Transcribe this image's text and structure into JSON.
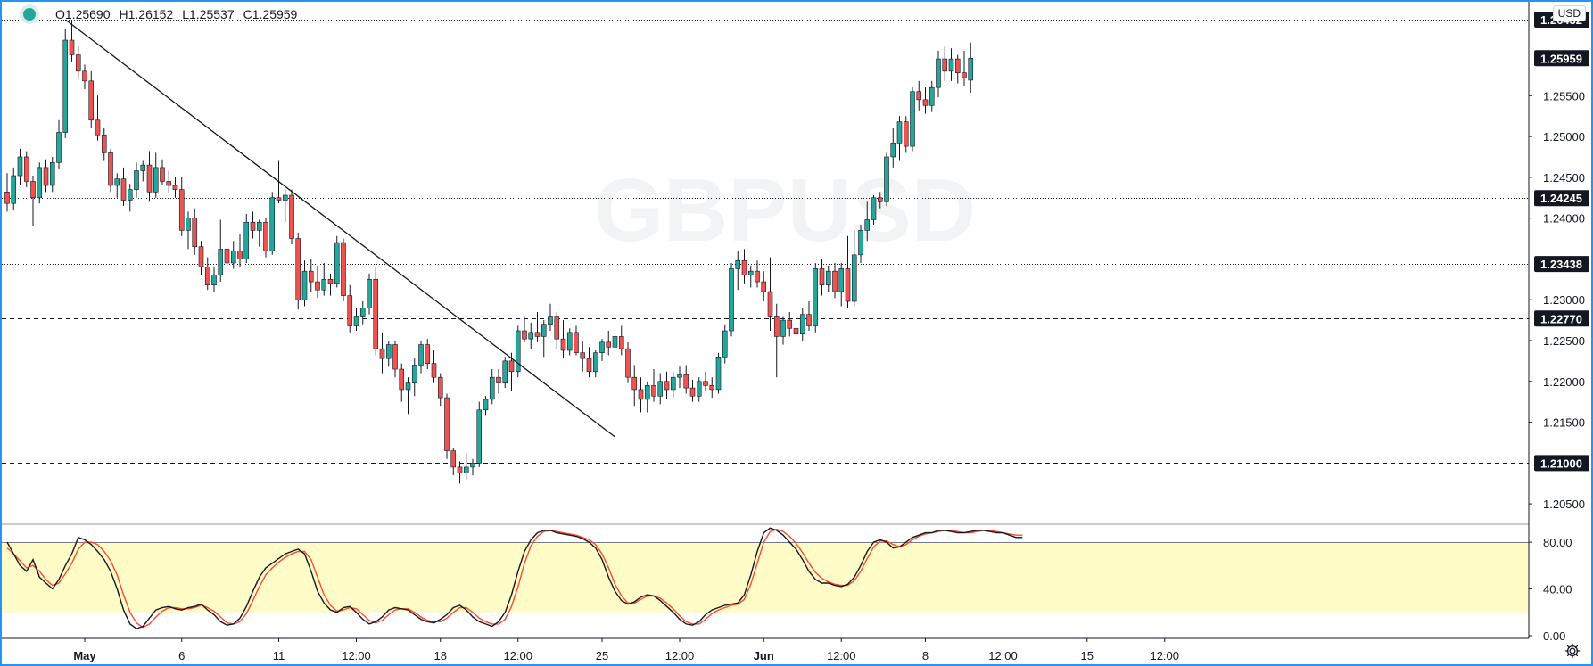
{
  "legend": {
    "open": "O1.25690",
    "high": "H1.26152",
    "low": "L1.25537",
    "close": "C1.25959"
  },
  "currency": "USD",
  "colors": {
    "up": "#26a69a",
    "down": "#ef5350",
    "accent": "#2196f3",
    "band_fill": "#fffcc8",
    "stoch_k": "#131722",
    "stoch_d": "#ff4a2e",
    "price_label_bg": "#131722"
  },
  "price_axis": {
    "ticks": [
      "1.20500",
      "1.21000",
      "1.21500",
      "1.22000",
      "1.22500",
      "1.23000",
      "1.23438",
      "1.24000",
      "1.24245",
      "1.24500",
      "1.25000",
      "1.25500",
      "1.25959",
      "1.26432"
    ],
    "plain_ticks": [
      "1.20500",
      "1.21500",
      "1.22000",
      "1.22500",
      "1.23000",
      "1.24000",
      "1.24500",
      "1.25000",
      "1.25500"
    ],
    "badges": [
      {
        "label": "1.26432",
        "value": 1.26432,
        "style": "dotted"
      },
      {
        "label": "1.25959",
        "value": 1.25959,
        "style": "none"
      },
      {
        "label": "1.24245",
        "value": 1.24245,
        "style": "dotted"
      },
      {
        "label": "1.23438",
        "value": 1.23438,
        "style": "dotted"
      },
      {
        "label": "1.22770",
        "value": 1.2277,
        "style": "dashed"
      },
      {
        "label": "1.21000",
        "value": 1.21,
        "style": "dashed"
      }
    ]
  },
  "oscillator_axis": {
    "ticks": [
      {
        "label": "80.00",
        "value": 80
      },
      {
        "label": "40.00",
        "value": 40
      },
      {
        "label": "0.00",
        "value": 0
      }
    ],
    "band": [
      20,
      80
    ]
  },
  "time_axis": [
    {
      "label": "May",
      "bar": 12
    },
    {
      "label": "6",
      "bar": 27
    },
    {
      "label": "11",
      "bar": 42
    },
    {
      "label": "12:00",
      "bar": 54
    },
    {
      "label": "18",
      "bar": 67
    },
    {
      "label": "12:00",
      "bar": 79
    },
    {
      "label": "25",
      "bar": 92
    },
    {
      "label": "12:00",
      "bar": 104
    },
    {
      "label": "Jun",
      "bar": 117
    },
    {
      "label": "12:00",
      "bar": 129
    },
    {
      "label": "8",
      "bar": 142
    },
    {
      "label": "12:00",
      "bar": 154
    },
    {
      "label": "15",
      "bar": 167
    },
    {
      "label": "12:00",
      "bar": 179
    }
  ],
  "chart_data": {
    "type": "candlestick",
    "instrument": "GBPUSD",
    "ylim": [
      1.2025,
      1.2665
    ],
    "candles": [
      [
        1.2432,
        1.2455,
        1.2408,
        1.2418
      ],
      [
        1.2418,
        1.2462,
        1.241,
        1.2452
      ],
      [
        1.2452,
        1.2485,
        1.244,
        1.2475
      ],
      [
        1.2475,
        1.2482,
        1.2438,
        1.2445
      ],
      [
        1.2445,
        1.2452,
        1.239,
        1.2425
      ],
      [
        1.2425,
        1.2468,
        1.2418,
        1.2462
      ],
      [
        1.2462,
        1.2472,
        1.2432,
        1.244
      ],
      [
        1.244,
        1.2475,
        1.2432,
        1.2468
      ],
      [
        1.2468,
        1.252,
        1.246,
        1.2505
      ],
      [
        1.2505,
        1.2632,
        1.2498,
        1.2618
      ],
      [
        1.2618,
        1.2643,
        1.2592,
        1.26
      ],
      [
        1.26,
        1.261,
        1.257,
        1.258
      ],
      [
        1.258,
        1.2588,
        1.2558,
        1.2568
      ],
      [
        1.2568,
        1.258,
        1.251,
        1.252
      ],
      [
        1.252,
        1.255,
        1.2495,
        1.2502
      ],
      [
        1.2502,
        1.251,
        1.247,
        1.248
      ],
      [
        1.248,
        1.2485,
        1.2432,
        1.244
      ],
      [
        1.244,
        1.2455,
        1.2425,
        1.2448
      ],
      [
        1.2448,
        1.2462,
        1.2415,
        1.2422
      ],
      [
        1.2422,
        1.2442,
        1.2408,
        1.2435
      ],
      [
        1.2435,
        1.2468,
        1.2425,
        1.2458
      ],
      [
        1.2458,
        1.247,
        1.2445,
        1.2465
      ],
      [
        1.2465,
        1.2482,
        1.242,
        1.2432
      ],
      [
        1.2432,
        1.248,
        1.2425,
        1.2462
      ],
      [
        1.2462,
        1.2472,
        1.244,
        1.2445
      ],
      [
        1.2445,
        1.2458,
        1.243,
        1.244
      ],
      [
        1.244,
        1.245,
        1.2425,
        1.2435
      ],
      [
        1.2435,
        1.245,
        1.2378,
        1.2385
      ],
      [
        1.2385,
        1.2408,
        1.2362,
        1.24
      ],
      [
        1.24,
        1.2412,
        1.2355,
        1.2365
      ],
      [
        1.2365,
        1.2372,
        1.233,
        1.234
      ],
      [
        1.234,
        1.2352,
        1.2312,
        1.2318
      ],
      [
        1.2318,
        1.234,
        1.231,
        1.233
      ],
      [
        1.233,
        1.2398,
        1.2322,
        1.2362
      ],
      [
        1.2362,
        1.2375,
        1.227,
        1.2345
      ],
      [
        1.2345,
        1.2372,
        1.2338,
        1.236
      ],
      [
        1.236,
        1.238,
        1.234,
        1.235
      ],
      [
        1.235,
        1.2405,
        1.2345,
        1.2395
      ],
      [
        1.2395,
        1.2408,
        1.2375,
        1.2385
      ],
      [
        1.2385,
        1.2398,
        1.2365,
        1.2395
      ],
      [
        1.2395,
        1.24,
        1.2352,
        1.236
      ],
      [
        1.236,
        1.2432,
        1.2355,
        1.2425
      ],
      [
        1.2425,
        1.247,
        1.2418,
        1.2422
      ],
      [
        1.2422,
        1.2435,
        1.2395,
        1.2428
      ],
      [
        1.2428,
        1.2435,
        1.2368,
        1.2375
      ],
      [
        1.2375,
        1.2382,
        1.2288,
        1.23
      ],
      [
        1.23,
        1.2348,
        1.2292,
        1.2335
      ],
      [
        1.2335,
        1.235,
        1.231,
        1.2322
      ],
      [
        1.2322,
        1.2342,
        1.2302,
        1.2312
      ],
      [
        1.2312,
        1.2345,
        1.2305,
        1.2325
      ],
      [
        1.2325,
        1.2332,
        1.2305,
        1.232
      ],
      [
        1.232,
        1.2378,
        1.2315,
        1.237
      ],
      [
        1.237,
        1.2375,
        1.2298,
        1.2305
      ],
      [
        1.2305,
        1.2318,
        1.226,
        1.2268
      ],
      [
        1.2268,
        1.229,
        1.2262,
        1.228
      ],
      [
        1.228,
        1.2298,
        1.227,
        1.229
      ],
      [
        1.229,
        1.2332,
        1.2282,
        1.2325
      ],
      [
        1.2325,
        1.234,
        1.2232,
        1.224
      ],
      [
        1.224,
        1.226,
        1.221,
        1.2228
      ],
      [
        1.2228,
        1.225,
        1.2218,
        1.2245
      ],
      [
        1.2245,
        1.225,
        1.2205,
        1.2215
      ],
      [
        1.2215,
        1.2222,
        1.2175,
        1.219
      ],
      [
        1.219,
        1.2205,
        1.216,
        1.2198
      ],
      [
        1.2198,
        1.2228,
        1.2182,
        1.222
      ],
      [
        1.222,
        1.225,
        1.221,
        1.2245
      ],
      [
        1.2245,
        1.2252,
        1.2215,
        1.2222
      ],
      [
        1.2222,
        1.2238,
        1.2198,
        1.2205
      ],
      [
        1.2205,
        1.221,
        1.217,
        1.218
      ],
      [
        1.218,
        1.2185,
        1.2105,
        1.2115
      ],
      [
        1.2115,
        1.2118,
        1.2085,
        1.2095
      ],
      [
        1.2095,
        1.2102,
        1.2075,
        1.2088
      ],
      [
        1.2088,
        1.2112,
        1.208,
        1.2095
      ],
      [
        1.2095,
        1.2105,
        1.2085,
        1.21
      ],
      [
        1.21,
        1.2175,
        1.2095,
        1.2165
      ],
      [
        1.2165,
        1.2182,
        1.2158,
        1.2178
      ],
      [
        1.2178,
        1.2215,
        1.2172,
        1.2205
      ],
      [
        1.2205,
        1.2215,
        1.2185,
        1.2198
      ],
      [
        1.2198,
        1.223,
        1.2192,
        1.2225
      ],
      [
        1.2225,
        1.2235,
        1.2188,
        1.2212
      ],
      [
        1.2212,
        1.2268,
        1.2205,
        1.2262
      ],
      [
        1.2262,
        1.228,
        1.2248,
        1.2252
      ],
      [
        1.2252,
        1.2272,
        1.224,
        1.226
      ],
      [
        1.226,
        1.2285,
        1.2248,
        1.2255
      ],
      [
        1.2255,
        1.2275,
        1.223,
        1.227
      ],
      [
        1.227,
        1.2295,
        1.2262,
        1.228
      ],
      [
        1.228,
        1.2285,
        1.224,
        1.2252
      ],
      [
        1.2252,
        1.2275,
        1.2228,
        1.2238
      ],
      [
        1.2238,
        1.2265,
        1.2232,
        1.226
      ],
      [
        1.226,
        1.2268,
        1.2232,
        1.2235
      ],
      [
        1.2235,
        1.225,
        1.2212,
        1.2228
      ],
      [
        1.2228,
        1.2242,
        1.2205,
        1.2212
      ],
      [
        1.2212,
        1.2238,
        1.2205,
        1.2235
      ],
      [
        1.2235,
        1.2252,
        1.2225,
        1.2248
      ],
      [
        1.2248,
        1.2262,
        1.2232,
        1.2242
      ],
      [
        1.2242,
        1.2262,
        1.2228,
        1.2255
      ],
      [
        1.2255,
        1.2268,
        1.2232,
        1.224
      ],
      [
        1.224,
        1.2248,
        1.2198,
        1.2205
      ],
      [
        1.2205,
        1.222,
        1.217,
        1.219
      ],
      [
        1.219,
        1.2205,
        1.2162,
        1.2178
      ],
      [
        1.2178,
        1.22,
        1.2162,
        1.2195
      ],
      [
        1.2195,
        1.2215,
        1.2175,
        1.2182
      ],
      [
        1.2182,
        1.221,
        1.2172,
        1.22
      ],
      [
        1.22,
        1.2212,
        1.2178,
        1.219
      ],
      [
        1.219,
        1.2212,
        1.218,
        1.2205
      ],
      [
        1.2205,
        1.2218,
        1.2192,
        1.2208
      ],
      [
        1.2208,
        1.222,
        1.2185,
        1.2192
      ],
      [
        1.2192,
        1.2202,
        1.2175,
        1.2182
      ],
      [
        1.2182,
        1.2205,
        1.2175,
        1.22
      ],
      [
        1.22,
        1.2212,
        1.2188,
        1.2195
      ],
      [
        1.2195,
        1.2205,
        1.218,
        1.219
      ],
      [
        1.219,
        1.2235,
        1.2185,
        1.223
      ],
      [
        1.223,
        1.227,
        1.2222,
        1.2262
      ],
      [
        1.2262,
        1.2345,
        1.2255,
        1.2338
      ],
      [
        1.2338,
        1.236,
        1.2312,
        1.2348
      ],
      [
        1.2348,
        1.2362,
        1.232,
        1.233
      ],
      [
        1.233,
        1.2342,
        1.2315,
        1.2335
      ],
      [
        1.2335,
        1.2348,
        1.2315,
        1.2322
      ],
      [
        1.2322,
        1.2335,
        1.2298,
        1.231
      ],
      [
        1.231,
        1.2352,
        1.2262,
        1.228
      ],
      [
        1.228,
        1.2295,
        1.2205,
        1.2255
      ],
      [
        1.2255,
        1.228,
        1.2245,
        1.2275
      ],
      [
        1.2275,
        1.2285,
        1.2255,
        1.2265
      ],
      [
        1.2265,
        1.2285,
        1.2245,
        1.2258
      ],
      [
        1.2258,
        1.229,
        1.225,
        1.2282
      ],
      [
        1.2282,
        1.2298,
        1.2262,
        1.2268
      ],
      [
        1.2268,
        1.2345,
        1.226,
        1.2338
      ],
      [
        1.2338,
        1.235,
        1.2305,
        1.2318
      ],
      [
        1.2318,
        1.2342,
        1.231,
        1.2335
      ],
      [
        1.2335,
        1.2345,
        1.2302,
        1.231
      ],
      [
        1.231,
        1.2345,
        1.2292,
        1.2338
      ],
      [
        1.2338,
        1.2378,
        1.229,
        1.2298
      ],
      [
        1.2298,
        1.2385,
        1.2292,
        1.2355
      ],
      [
        1.2355,
        1.2392,
        1.2345,
        1.2385
      ],
      [
        1.2385,
        1.242,
        1.2372,
        1.2398
      ],
      [
        1.2398,
        1.2428,
        1.2392,
        1.2425
      ],
      [
        1.2425,
        1.2432,
        1.2412,
        1.242
      ],
      [
        1.242,
        1.248,
        1.2415,
        1.2475
      ],
      [
        1.2475,
        1.251,
        1.2462,
        1.2492
      ],
      [
        1.2492,
        1.2525,
        1.247,
        1.2518
      ],
      [
        1.2518,
        1.2525,
        1.248,
        1.2488
      ],
      [
        1.2488,
        1.256,
        1.2482,
        1.2555
      ],
      [
        1.2555,
        1.2568,
        1.2532,
        1.2545
      ],
      [
        1.2545,
        1.256,
        1.2528,
        1.2538
      ],
      [
        1.2538,
        1.2568,
        1.253,
        1.256
      ],
      [
        1.256,
        1.2605,
        1.2548,
        1.2595
      ],
      [
        1.2595,
        1.261,
        1.2568,
        1.258
      ],
      [
        1.258,
        1.2608,
        1.2568,
        1.2595
      ],
      [
        1.2595,
        1.26,
        1.2565,
        1.2578
      ],
      [
        1.2578,
        1.2605,
        1.2562,
        1.2572
      ],
      [
        1.2569,
        1.26152,
        1.25537,
        1.25959
      ]
    ],
    "trendline": [
      {
        "bar": 9,
        "price": 1.26432
      },
      {
        "bar": 94,
        "price": 1.2132
      }
    ],
    "stochastic": {
      "range": [
        0,
        100
      ],
      "k": [
        80,
        70,
        60,
        55,
        65,
        50,
        45,
        40,
        48,
        60,
        70,
        84,
        82,
        78,
        72,
        65,
        55,
        40,
        22,
        10,
        6,
        8,
        15,
        22,
        24,
        25,
        23,
        22,
        24,
        25,
        27,
        22,
        18,
        12,
        9,
        10,
        15,
        25,
        38,
        50,
        58,
        62,
        66,
        70,
        72,
        74,
        70,
        55,
        38,
        28,
        22,
        20,
        24,
        25,
        20,
        14,
        10,
        12,
        16,
        22,
        24,
        23,
        22,
        18,
        14,
        12,
        11,
        14,
        18,
        24,
        26,
        22,
        16,
        12,
        10,
        8,
        12,
        20,
        35,
        55,
        72,
        82,
        88,
        90,
        90,
        88,
        87,
        86,
        85,
        83,
        80,
        75,
        65,
        50,
        38,
        30,
        27,
        29,
        33,
        35,
        34,
        30,
        25,
        20,
        14,
        10,
        9,
        12,
        18,
        22,
        24,
        26,
        27,
        28,
        35,
        52,
        72,
        88,
        92,
        90,
        86,
        80,
        74,
        65,
        55,
        48,
        45,
        45,
        43,
        42,
        44,
        50,
        60,
        72,
        80,
        82,
        80,
        75,
        76,
        80,
        84,
        86,
        88,
        88,
        90,
        90,
        89,
        88,
        88,
        89,
        90,
        90,
        89,
        88,
        88,
        86,
        84,
        84
      ],
      "d": [
        75,
        70,
        64,
        58,
        60,
        55,
        48,
        43,
        45,
        53,
        62,
        74,
        80,
        80,
        78,
        72,
        64,
        52,
        35,
        20,
        11,
        7,
        10,
        16,
        21,
        24,
        24,
        23,
        23,
        24,
        26,
        24,
        21,
        16,
        11,
        10,
        12,
        19,
        30,
        42,
        52,
        58,
        63,
        67,
        70,
        72,
        72,
        65,
        50,
        35,
        26,
        21,
        22,
        24,
        23,
        18,
        13,
        11,
        13,
        18,
        22,
        23,
        23,
        20,
        16,
        13,
        12,
        12,
        15,
        20,
        24,
        24,
        20,
        15,
        12,
        10,
        10,
        14,
        25,
        42,
        62,
        77,
        85,
        89,
        90,
        89,
        88,
        87,
        86,
        84,
        82,
        78,
        70,
        58,
        44,
        34,
        28,
        28,
        31,
        34,
        34,
        32,
        28,
        23,
        17,
        12,
        10,
        10,
        14,
        19,
        22,
        24,
        26,
        27,
        31,
        44,
        62,
        80,
        89,
        91,
        89,
        85,
        79,
        71,
        62,
        54,
        49,
        46,
        44,
        43,
        43,
        47,
        55,
        66,
        76,
        81,
        81,
        78,
        76,
        78,
        82,
        85,
        87,
        88,
        89,
        90,
        90,
        89,
        88,
        88,
        89,
        90,
        90,
        89,
        88,
        87,
        86,
        86
      ]
    }
  }
}
